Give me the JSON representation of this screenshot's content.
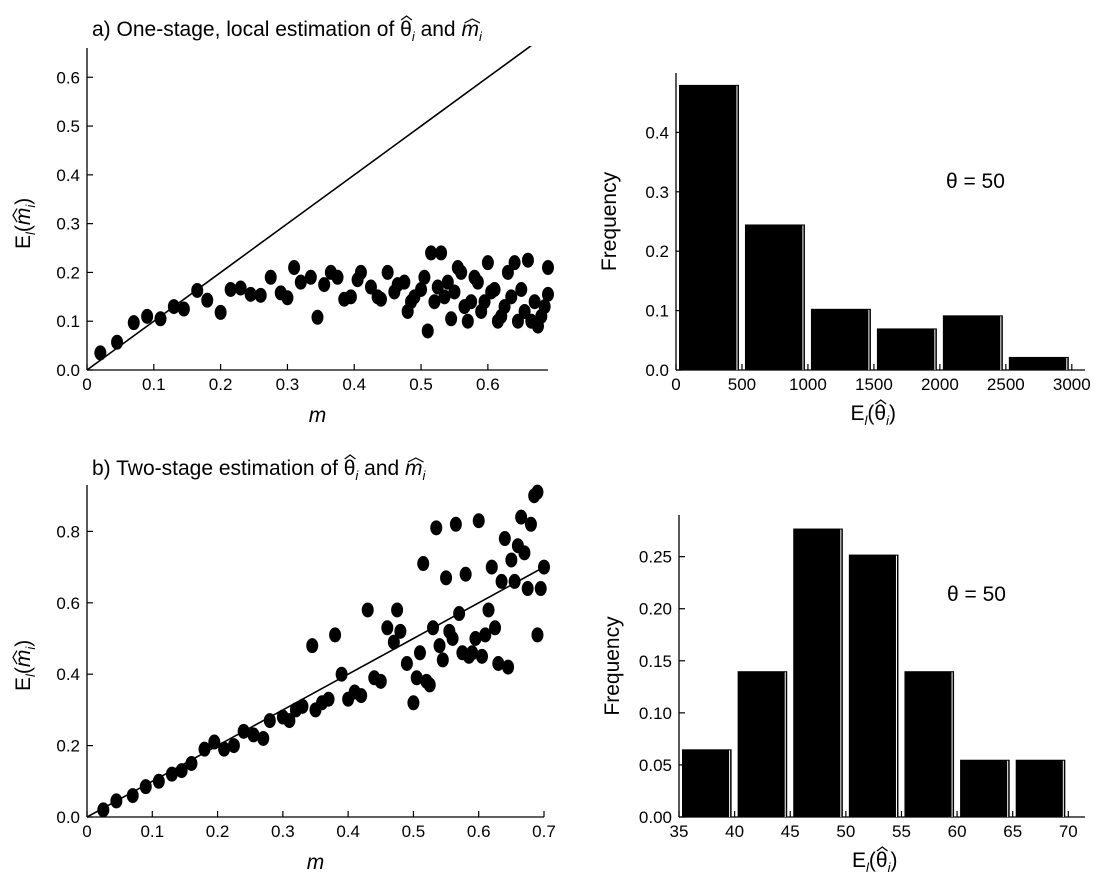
{
  "chart_data": [
    {
      "id": "a-scatter",
      "type": "scatter",
      "title_prefix": "a) One-stage, local estimation of ",
      "title_theta": "θ",
      "title_and": " and ",
      "title_m": "m",
      "title_sub": "i",
      "xlabel": "m",
      "ylabel_main": "E",
      "ylabel_sub": "l",
      "ylabel_m": "m",
      "ylabel_i": "i",
      "xlim": [
        0,
        0.69
      ],
      "ylim": [
        0,
        0.66
      ],
      "xticks": [
        "0",
        "0.1",
        "0.2",
        "0.3",
        "0.4",
        "0.5",
        "0.6"
      ],
      "xtick_values": [
        0,
        0.1,
        0.2,
        0.3,
        0.4,
        0.5,
        0.6
      ],
      "yticks": [
        "0.0",
        "0.1",
        "0.2",
        "0.3",
        "0.4",
        "0.5",
        "0.6"
      ],
      "ytick_values": [
        0,
        0.1,
        0.2,
        0.3,
        0.4,
        0.5,
        0.6
      ],
      "line": {
        "x": [
          0,
          0.1,
          0.2,
          0.3,
          0.4,
          0.5,
          0.6,
          0.69
        ],
        "y": [
          0,
          0.1,
          0.2,
          0.3,
          0.4,
          0.5,
          0.6,
          0.69
        ]
      },
      "points": [
        [
          0.02,
          0.035
        ],
        [
          0.045,
          0.057
        ],
        [
          0.07,
          0.097
        ],
        [
          0.09,
          0.11
        ],
        [
          0.11,
          0.105
        ],
        [
          0.13,
          0.13
        ],
        [
          0.145,
          0.125
        ],
        [
          0.165,
          0.163
        ],
        [
          0.18,
          0.143
        ],
        [
          0.2,
          0.118
        ],
        [
          0.215,
          0.165
        ],
        [
          0.23,
          0.168
        ],
        [
          0.245,
          0.155
        ],
        [
          0.26,
          0.153
        ],
        [
          0.275,
          0.19
        ],
        [
          0.29,
          0.158
        ],
        [
          0.3,
          0.148
        ],
        [
          0.31,
          0.21
        ],
        [
          0.32,
          0.18
        ],
        [
          0.335,
          0.19
        ],
        [
          0.345,
          0.108
        ],
        [
          0.355,
          0.175
        ],
        [
          0.365,
          0.2
        ],
        [
          0.375,
          0.19
        ],
        [
          0.385,
          0.145
        ],
        [
          0.395,
          0.15
        ],
        [
          0.405,
          0.185
        ],
        [
          0.41,
          0.2
        ],
        [
          0.425,
          0.17
        ],
        [
          0.435,
          0.15
        ],
        [
          0.44,
          0.145
        ],
        [
          0.45,
          0.2
        ],
        [
          0.46,
          0.16
        ],
        [
          0.465,
          0.175
        ],
        [
          0.475,
          0.18
        ],
        [
          0.48,
          0.12
        ],
        [
          0.485,
          0.14
        ],
        [
          0.49,
          0.15
        ],
        [
          0.5,
          0.165
        ],
        [
          0.505,
          0.19
        ],
        [
          0.51,
          0.08
        ],
        [
          0.515,
          0.24
        ],
        [
          0.52,
          0.14
        ],
        [
          0.525,
          0.17
        ],
        [
          0.53,
          0.24
        ],
        [
          0.535,
          0.15
        ],
        [
          0.54,
          0.18
        ],
        [
          0.545,
          0.105
        ],
        [
          0.55,
          0.16
        ],
        [
          0.555,
          0.21
        ],
        [
          0.56,
          0.2
        ],
        [
          0.565,
          0.13
        ],
        [
          0.57,
          0.1
        ],
        [
          0.575,
          0.14
        ],
        [
          0.58,
          0.19
        ],
        [
          0.585,
          0.18
        ],
        [
          0.59,
          0.12
        ],
        [
          0.595,
          0.14
        ],
        [
          0.6,
          0.22
        ],
        [
          0.605,
          0.16
        ],
        [
          0.61,
          0.165
        ],
        [
          0.615,
          0.1
        ],
        [
          0.62,
          0.11
        ],
        [
          0.625,
          0.13
        ],
        [
          0.63,
          0.2
        ],
        [
          0.635,
          0.15
        ],
        [
          0.64,
          0.22
        ],
        [
          0.645,
          0.1
        ],
        [
          0.65,
          0.165
        ],
        [
          0.655,
          0.12
        ],
        [
          0.66,
          0.225
        ],
        [
          0.665,
          0.1
        ],
        [
          0.67,
          0.14
        ],
        [
          0.675,
          0.09
        ],
        [
          0.68,
          0.11
        ],
        [
          0.685,
          0.13
        ],
        [
          0.69,
          0.21
        ],
        [
          0.69,
          0.155
        ]
      ]
    },
    {
      "id": "a-hist",
      "type": "bar",
      "xlabel_main": "E",
      "xlabel_sub": "l",
      "xlabel_theta": "θ",
      "xlabel_i": "i",
      "ylabel": "Frequency",
      "annotation": "θ = 50",
      "xlim": [
        0,
        3100
      ],
      "ylim": [
        0,
        0.5
      ],
      "xticks": [
        "0",
        "500",
        "1000",
        "1500",
        "2000",
        "2500",
        "3000"
      ],
      "xtick_values": [
        0,
        500,
        1000,
        1500,
        2000,
        2500,
        3000
      ],
      "yticks": [
        "0.0",
        "0.1",
        "0.2",
        "0.3",
        "0.4"
      ],
      "ytick_values": [
        0,
        0.1,
        0.2,
        0.3,
        0.4
      ],
      "bins": [
        [
          0,
          500
        ],
        [
          500,
          1000
        ],
        [
          1000,
          1500
        ],
        [
          1500,
          2000
        ],
        [
          2000,
          2500
        ],
        [
          2500,
          3000
        ]
      ],
      "values": [
        0.48,
        0.245,
        0.103,
        0.07,
        0.092,
        0.022
      ]
    },
    {
      "id": "b-scatter",
      "type": "scatter",
      "title_prefix": "b) Two-stage estimation of ",
      "title_theta": "θ",
      "title_and": " and ",
      "title_m": "m",
      "title_sub": "i",
      "xlabel": "m",
      "ylabel_main": "E",
      "ylabel_sub": "l",
      "ylabel_m": "m",
      "ylabel_i": "i",
      "xlim": [
        0,
        0.7
      ],
      "ylim": [
        0,
        0.93
      ],
      "xticks": [
        "0",
        "0.1",
        "0.2",
        "0.3",
        "0.4",
        "0.5",
        "0.6",
        "0.7"
      ],
      "xtick_values": [
        0,
        0.1,
        0.2,
        0.3,
        0.4,
        0.5,
        0.6,
        0.7
      ],
      "yticks": [
        "0.0",
        "0.2",
        "0.4",
        "0.6",
        "0.8"
      ],
      "ytick_values": [
        0,
        0.2,
        0.4,
        0.6,
        0.8
      ],
      "line": {
        "x": [
          0,
          0.1,
          0.2,
          0.3,
          0.4,
          0.5,
          0.6,
          0.7
        ],
        "y": [
          0,
          0.1,
          0.2,
          0.3,
          0.4,
          0.5,
          0.6,
          0.7
        ]
      },
      "points": [
        [
          0.025,
          0.02
        ],
        [
          0.045,
          0.045
        ],
        [
          0.07,
          0.06
        ],
        [
          0.09,
          0.085
        ],
        [
          0.11,
          0.1
        ],
        [
          0.13,
          0.12
        ],
        [
          0.145,
          0.13
        ],
        [
          0.16,
          0.15
        ],
        [
          0.18,
          0.19
        ],
        [
          0.195,
          0.21
        ],
        [
          0.21,
          0.19
        ],
        [
          0.225,
          0.2
        ],
        [
          0.24,
          0.24
        ],
        [
          0.255,
          0.23
        ],
        [
          0.27,
          0.22
        ],
        [
          0.28,
          0.27
        ],
        [
          0.3,
          0.28
        ],
        [
          0.31,
          0.27
        ],
        [
          0.32,
          0.3
        ],
        [
          0.33,
          0.31
        ],
        [
          0.345,
          0.48
        ],
        [
          0.35,
          0.3
        ],
        [
          0.36,
          0.32
        ],
        [
          0.37,
          0.33
        ],
        [
          0.38,
          0.51
        ],
        [
          0.39,
          0.4
        ],
        [
          0.4,
          0.33
        ],
        [
          0.41,
          0.35
        ],
        [
          0.42,
          0.34
        ],
        [
          0.43,
          0.58
        ],
        [
          0.44,
          0.39
        ],
        [
          0.45,
          0.38
        ],
        [
          0.46,
          0.53
        ],
        [
          0.47,
          0.49
        ],
        [
          0.475,
          0.58
        ],
        [
          0.48,
          0.52
        ],
        [
          0.49,
          0.43
        ],
        [
          0.5,
          0.32
        ],
        [
          0.505,
          0.39
        ],
        [
          0.51,
          0.46
        ],
        [
          0.515,
          0.71
        ],
        [
          0.52,
          0.38
        ],
        [
          0.525,
          0.37
        ],
        [
          0.53,
          0.53
        ],
        [
          0.535,
          0.81
        ],
        [
          0.54,
          0.48
        ],
        [
          0.545,
          0.44
        ],
        [
          0.55,
          0.67
        ],
        [
          0.555,
          0.52
        ],
        [
          0.56,
          0.5
        ],
        [
          0.565,
          0.82
        ],
        [
          0.57,
          0.57
        ],
        [
          0.575,
          0.46
        ],
        [
          0.58,
          0.68
        ],
        [
          0.585,
          0.45
        ],
        [
          0.59,
          0.46
        ],
        [
          0.595,
          0.5
        ],
        [
          0.6,
          0.83
        ],
        [
          0.605,
          0.45
        ],
        [
          0.61,
          0.51
        ],
        [
          0.615,
          0.58
        ],
        [
          0.62,
          0.7
        ],
        [
          0.625,
          0.53
        ],
        [
          0.63,
          0.43
        ],
        [
          0.635,
          0.66
        ],
        [
          0.64,
          0.78
        ],
        [
          0.645,
          0.42
        ],
        [
          0.65,
          0.72
        ],
        [
          0.655,
          0.66
        ],
        [
          0.66,
          0.76
        ],
        [
          0.665,
          0.84
        ],
        [
          0.67,
          0.74
        ],
        [
          0.675,
          0.64
        ],
        [
          0.68,
          0.82
        ],
        [
          0.685,
          0.9
        ],
        [
          0.69,
          0.91
        ],
        [
          0.69,
          0.51
        ],
        [
          0.695,
          0.64
        ],
        [
          0.7,
          0.7
        ]
      ]
    },
    {
      "id": "b-hist",
      "type": "bar",
      "xlabel_main": "E",
      "xlabel_sub": "l",
      "xlabel_theta": "θ",
      "xlabel_i": "i",
      "ylabel": "Frequency",
      "annotation": "θ = 50",
      "xlim": [
        35,
        71.5
      ],
      "ylim": [
        0,
        0.29
      ],
      "xticks": [
        "35",
        "40",
        "45",
        "50",
        "55",
        "60",
        "65",
        "70"
      ],
      "xtick_values": [
        35,
        40,
        45,
        50,
        55,
        60,
        65,
        70
      ],
      "yticks": [
        "0.00",
        "0.05",
        "0.10",
        "0.15",
        "0.20",
        "0.25"
      ],
      "ytick_values": [
        0,
        0.05,
        0.1,
        0.15,
        0.2,
        0.25
      ],
      "bins": [
        [
          35,
          40
        ],
        [
          40,
          45
        ],
        [
          45,
          50
        ],
        [
          50,
          55
        ],
        [
          55,
          60
        ],
        [
          60,
          65
        ],
        [
          65,
          70
        ]
      ],
      "values": [
        0.065,
        0.14,
        0.277,
        0.252,
        0.14,
        0.055,
        0.055
      ]
    }
  ]
}
